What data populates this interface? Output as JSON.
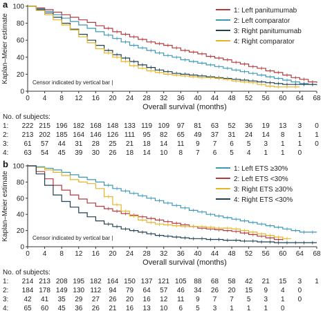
{
  "chart_data": [
    {
      "panel_label": "a",
      "type": "line",
      "ylabel": "Kaplan–Meier estimate",
      "xlabel": "Overall survival (months)",
      "xlim": [
        0,
        68
      ],
      "ylim": [
        0,
        100
      ],
      "xticks": [
        0,
        4,
        8,
        12,
        16,
        20,
        24,
        28,
        32,
        36,
        40,
        44,
        48,
        52,
        56,
        60,
        64,
        68
      ],
      "yticks": [
        0,
        20,
        40,
        60,
        80,
        100
      ],
      "legend_position": "top-right",
      "censor_note": "Censor indicated by vertical bar |",
      "series": [
        {
          "name": "1: Left panitumumab",
          "color": "#b5393d",
          "x": [
            0,
            2,
            4,
            6,
            8,
            10,
            12,
            14,
            16,
            18,
            20,
            22,
            24,
            26,
            28,
            30,
            32,
            34,
            36,
            38,
            40,
            42,
            44,
            46,
            48,
            50,
            52,
            54,
            56,
            58,
            60,
            62,
            64,
            66,
            68
          ],
          "y": [
            100,
            98,
            96,
            93,
            90,
            87,
            84,
            81,
            77,
            74,
            70,
            67,
            64,
            61,
            58,
            56,
            54,
            51,
            48,
            46,
            44,
            41,
            39,
            37,
            34,
            32,
            29,
            27,
            24,
            22,
            19,
            16,
            14,
            11,
            10
          ]
        },
        {
          "name": "2: Left comparator",
          "color": "#3a97b8",
          "x": [
            0,
            2,
            4,
            6,
            8,
            10,
            12,
            14,
            16,
            18,
            20,
            22,
            24,
            26,
            28,
            30,
            32,
            34,
            36,
            38,
            40,
            42,
            44,
            46,
            48,
            50,
            52,
            54,
            56,
            58,
            60,
            62,
            64,
            66,
            68
          ],
          "y": [
            100,
            97,
            94,
            90,
            86,
            82,
            78,
            74,
            70,
            66,
            62,
            58,
            54,
            51,
            48,
            45,
            42,
            40,
            37,
            35,
            33,
            31,
            29,
            27,
            25,
            23,
            21,
            19,
            17,
            15,
            13,
            11,
            9,
            8,
            7
          ]
        },
        {
          "name": "3: Right panitumumab",
          "color": "#1f3f52",
          "x": [
            0,
            2,
            4,
            6,
            8,
            10,
            12,
            14,
            16,
            18,
            20,
            22,
            24,
            26,
            28,
            30,
            32,
            34,
            36,
            38,
            40,
            42,
            44,
            46,
            48,
            50,
            52,
            54,
            56,
            58,
            60,
            62,
            64,
            66,
            68
          ],
          "y": [
            100,
            96,
            92,
            87,
            80,
            73,
            67,
            60,
            54,
            48,
            43,
            39,
            35,
            31,
            28,
            25,
            23,
            21,
            20,
            19,
            18,
            17,
            16,
            15,
            14,
            13,
            12,
            11,
            10,
            9,
            8,
            8,
            8,
            8,
            8
          ]
        },
        {
          "name": "4: Right comparator",
          "color": "#e6b425",
          "x": [
            0,
            2,
            4,
            6,
            8,
            10,
            12,
            14,
            16,
            18,
            20,
            22,
            24,
            26,
            28,
            30,
            32,
            34,
            36,
            38,
            40,
            42,
            44,
            46,
            48,
            50,
            52,
            54,
            56,
            58,
            60,
            62,
            64
          ],
          "y": [
            100,
            95,
            90,
            84,
            78,
            72,
            64,
            57,
            50,
            45,
            40,
            35,
            30,
            27,
            24,
            22,
            20,
            19,
            18,
            17,
            16,
            16,
            15,
            14,
            12,
            11,
            10,
            8,
            6,
            5,
            5,
            5,
            5
          ]
        }
      ],
      "subjects_header": "No. of subjects:",
      "subjects": [
        {
          "label": "1:",
          "values": [
            "222",
            "215",
            "196",
            "182",
            "168",
            "148",
            "133",
            "119",
            "109",
            "97",
            "81",
            "63",
            "52",
            "36",
            "19",
            "13",
            "3",
            "0"
          ]
        },
        {
          "label": "2:",
          "values": [
            "213",
            "202",
            "185",
            "164",
            "146",
            "126",
            "111",
            "95",
            "82",
            "65",
            "49",
            "37",
            "31",
            "24",
            "14",
            "8",
            "1",
            "1"
          ]
        },
        {
          "label": "3:",
          "values": [
            "61",
            "57",
            "44",
            "31",
            "28",
            "25",
            "21",
            "18",
            "14",
            "11",
            "9",
            "7",
            "6",
            "5",
            "3",
            "1",
            "1",
            "0"
          ]
        },
        {
          "label": "4:",
          "values": [
            "63",
            "54",
            "45",
            "39",
            "30",
            "26",
            "18",
            "14",
            "10",
            "8",
            "7",
            "6",
            "5",
            "4",
            "1",
            "1",
            "0",
            ""
          ]
        }
      ]
    },
    {
      "panel_label": "b",
      "type": "line",
      "ylabel": "Kaplan–Meier estimate",
      "xlabel": "Overall survival (months)",
      "xlim": [
        0,
        68
      ],
      "ylim": [
        0,
        100
      ],
      "xticks": [
        0,
        4,
        8,
        12,
        16,
        20,
        24,
        28,
        32,
        36,
        40,
        44,
        48,
        52,
        56,
        60,
        64,
        68
      ],
      "yticks": [
        0,
        20,
        40,
        60,
        80,
        100
      ],
      "legend_position": "top-right",
      "censor_note": "Censor indicated by vertical bar |",
      "series": [
        {
          "name": "1: Left ETS ≥30%",
          "color": "#3a97b8",
          "x": [
            0,
            2,
            4,
            6,
            8,
            10,
            12,
            14,
            16,
            18,
            20,
            22,
            24,
            26,
            28,
            30,
            32,
            34,
            36,
            38,
            40,
            42,
            44,
            46,
            48,
            50,
            52,
            54,
            56,
            58,
            60,
            62,
            64,
            66,
            68
          ],
          "y": [
            100,
            99,
            97,
            95,
            92,
            89,
            86,
            83,
            80,
            76,
            72,
            69,
            66,
            63,
            60,
            57,
            54,
            51,
            48,
            45,
            43,
            40,
            38,
            36,
            34,
            32,
            30,
            28,
            26,
            24,
            22,
            20,
            18,
            18,
            18
          ]
        },
        {
          "name": "2: Left ETS <30%",
          "color": "#b5393d",
          "x": [
            0,
            2,
            4,
            6,
            8,
            10,
            12,
            14,
            16,
            18,
            20,
            22,
            24,
            26,
            28,
            30,
            32,
            34,
            36,
            38,
            40,
            42,
            44,
            46,
            48,
            50,
            52,
            54,
            56,
            58,
            60
          ],
          "y": [
            100,
            93,
            84,
            76,
            70,
            64,
            59,
            54,
            50,
            47,
            44,
            41,
            39,
            37,
            35,
            33,
            31,
            29,
            27,
            25,
            23,
            22,
            21,
            20,
            19,
            17,
            15,
            13,
            11,
            9,
            8
          ]
        },
        {
          "name": "3: Right ETS ≥30%",
          "color": "#e6b425",
          "x": [
            0,
            2,
            4,
            6,
            8,
            10,
            12,
            14,
            16,
            18,
            20,
            22,
            24,
            26,
            28,
            30,
            32,
            34,
            36,
            38,
            40,
            42,
            44,
            46,
            48,
            50,
            52,
            54,
            56,
            58,
            60,
            62
          ],
          "y": [
            100,
            98,
            95,
            92,
            88,
            83,
            80,
            78,
            72,
            62,
            52,
            44,
            38,
            33,
            30,
            28,
            27,
            26,
            25,
            25,
            25,
            24,
            23,
            23,
            22,
            20,
            18,
            16,
            14,
            12,
            10,
            10
          ]
        },
        {
          "name": "4: Right ETS <30%",
          "color": "#1f3f52",
          "x": [
            0,
            2,
            4,
            6,
            8,
            10,
            12,
            14,
            16,
            18,
            20,
            22,
            24,
            26,
            28,
            30,
            32,
            34,
            36,
            38,
            40,
            42,
            44,
            46,
            48,
            50,
            52,
            54,
            56,
            58,
            60,
            62,
            64,
            66,
            68
          ],
          "y": [
            100,
            90,
            76,
            64,
            56,
            49,
            42,
            37,
            32,
            28,
            25,
            22,
            20,
            18,
            16,
            14,
            13,
            12,
            11,
            10,
            10,
            9,
            9,
            8,
            8,
            7,
            7,
            6,
            6,
            5,
            5,
            5,
            5,
            5,
            5
          ]
        }
      ],
      "subjects_header": "No. of subjects:",
      "subjects": [
        {
          "label": "1:",
          "values": [
            "214",
            "213",
            "208",
            "195",
            "182",
            "164",
            "150",
            "137",
            "121",
            "105",
            "88",
            "68",
            "58",
            "42",
            "21",
            "15",
            "3",
            "1"
          ]
        },
        {
          "label": "2:",
          "values": [
            "184",
            "178",
            "149",
            "130",
            "112",
            "94",
            "79",
            "64",
            "57",
            "46",
            "34",
            "26",
            "20",
            "15",
            "9",
            "4",
            "0",
            ""
          ]
        },
        {
          "label": "3:",
          "values": [
            "42",
            "41",
            "35",
            "29",
            "27",
            "26",
            "20",
            "16",
            "12",
            "11",
            "9",
            "7",
            "7",
            "5",
            "3",
            "1",
            "0",
            ""
          ]
        },
        {
          "label": "4:",
          "values": [
            "65",
            "60",
            "45",
            "36",
            "26",
            "21",
            "16",
            "13",
            "10",
            "6",
            "5",
            "3",
            "1",
            "1",
            "1",
            "0",
            "",
            ""
          ]
        }
      ]
    }
  ]
}
